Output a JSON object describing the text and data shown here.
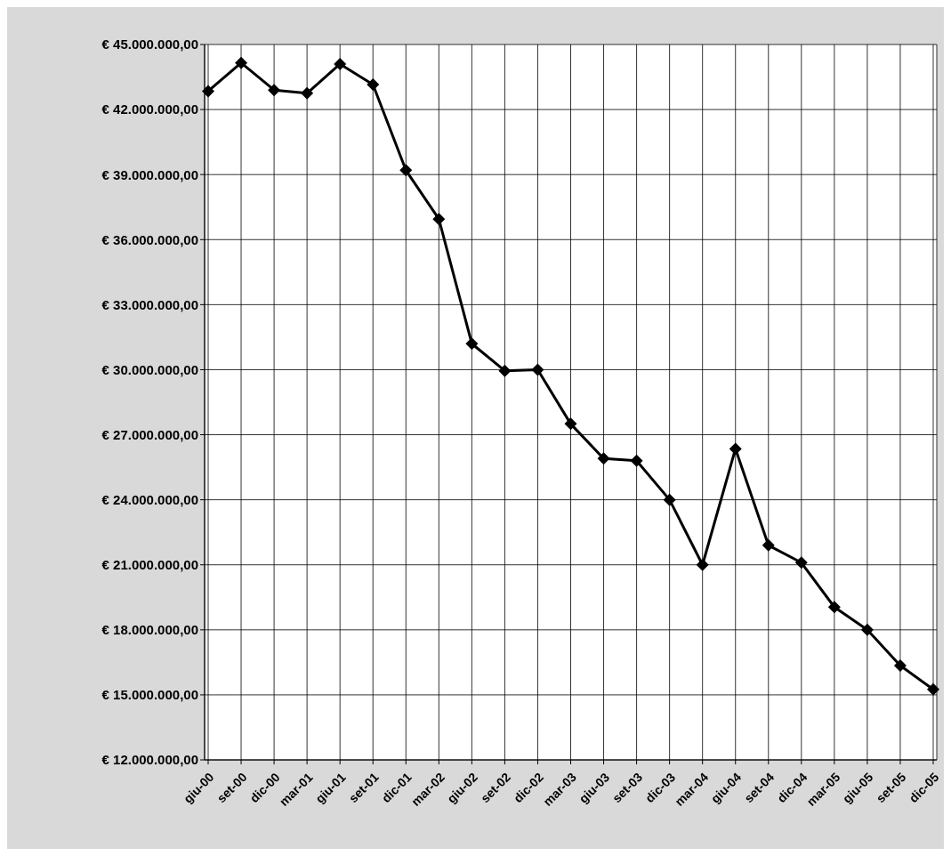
{
  "chart_data": {
    "type": "line",
    "categories": [
      "giu-00",
      "set-00",
      "dic-00",
      "mar-01",
      "giu-01",
      "set-01",
      "dic-01",
      "mar-02",
      "giu-02",
      "set-02",
      "dic-02",
      "mar-03",
      "giu-03",
      "set-03",
      "dic-03",
      "mar-04",
      "giu-04",
      "set-04",
      "dic-04",
      "mar-05",
      "giu-05",
      "set-05",
      "dic-05"
    ],
    "series": [
      {
        "color": "#000000",
        "values": [
          42850000,
          44150000,
          42900000,
          42750000,
          44100000,
          43150000,
          39200000,
          36950000,
          31200000,
          29950000,
          30000000,
          27500000,
          25900000,
          25800000,
          24000000,
          21000000,
          26350000,
          21900000,
          21100000,
          19050000,
          18000000,
          16350000,
          15250000
        ]
      }
    ],
    "ylim": [
      12000000,
      45000000
    ],
    "yticks": [
      {
        "value": 12000000,
        "label": "€ 12.000.000,00"
      },
      {
        "value": 15000000,
        "label": "€ 15.000.000,00"
      },
      {
        "value": 18000000,
        "label": "€ 18.000.000,00"
      },
      {
        "value": 21000000,
        "label": "€ 21.000.000,00"
      },
      {
        "value": 24000000,
        "label": "€ 24.000.000,00"
      },
      {
        "value": 27000000,
        "label": "€ 27.000.000,00"
      },
      {
        "value": 30000000,
        "label": "€ 30.000.000,00"
      },
      {
        "value": 33000000,
        "label": "€ 33.000.000,00"
      },
      {
        "value": 36000000,
        "label": "€ 36.000.000,00"
      },
      {
        "value": 39000000,
        "label": "€ 39.000.000,00"
      },
      {
        "value": 42000000,
        "label": "€ 42.000.000,00"
      },
      {
        "value": 45000000,
        "label": "€ 45.000.000,00"
      }
    ],
    "grid": true,
    "legend": false,
    "marker": "diamond",
    "line_style": "solid"
  }
}
